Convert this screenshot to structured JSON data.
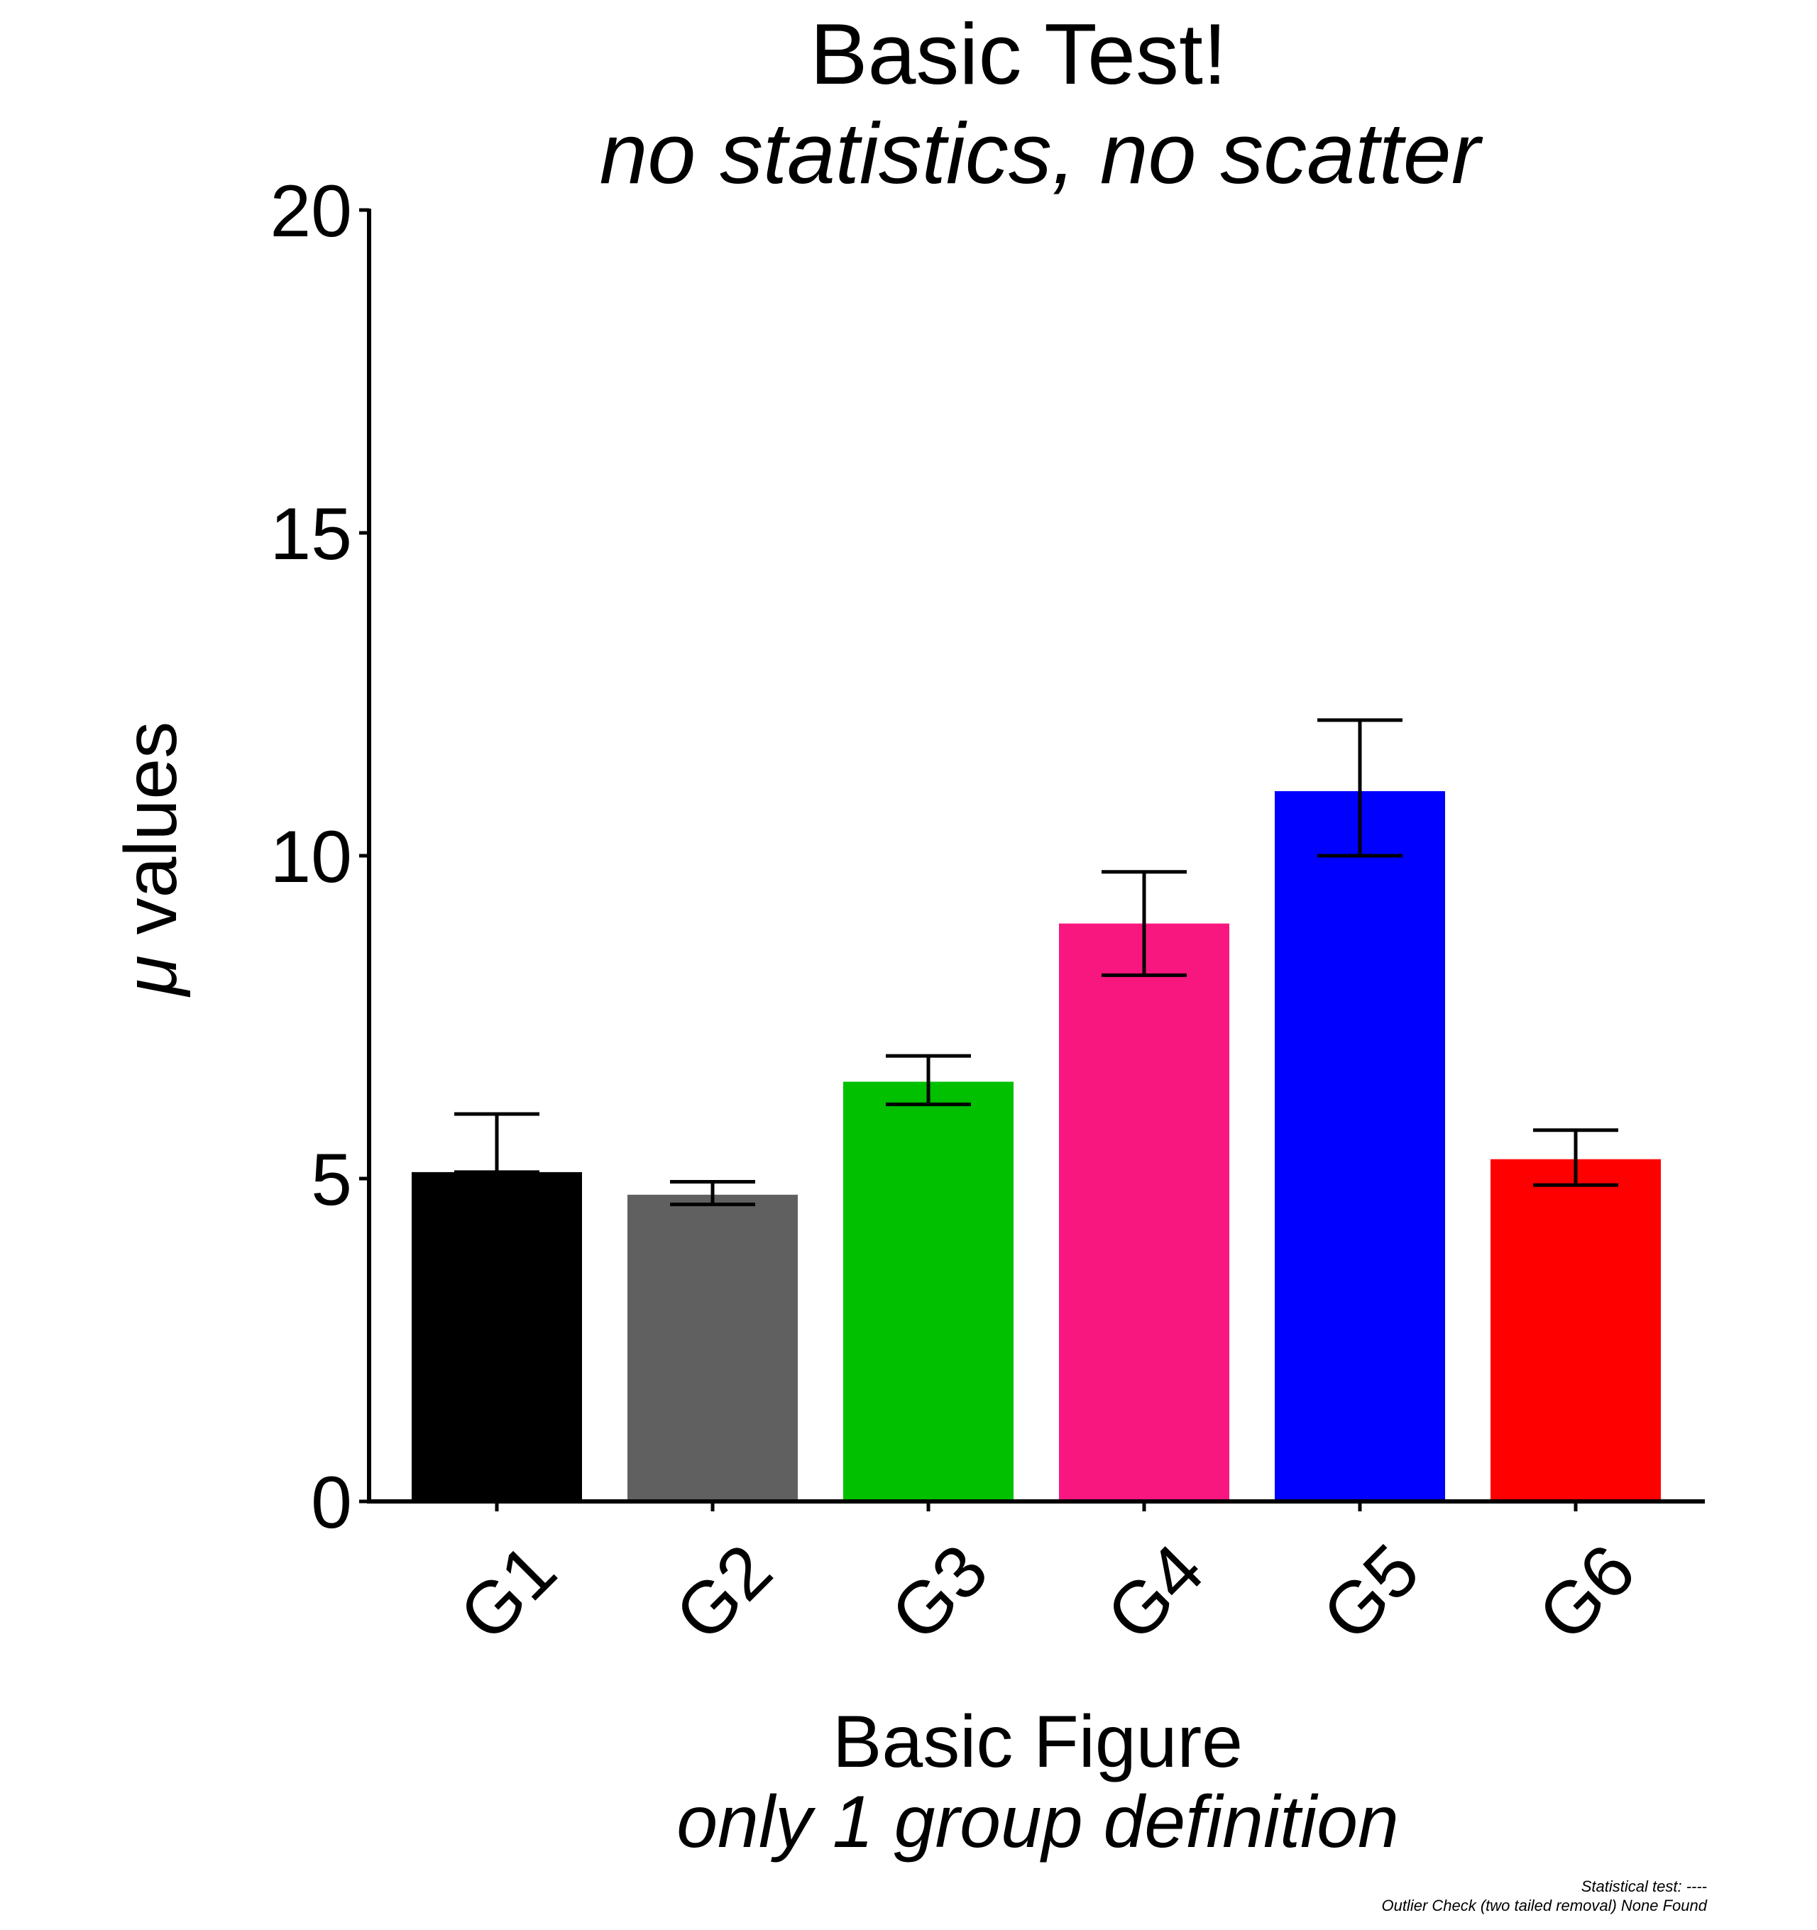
{
  "chart_data": {
    "type": "bar",
    "title": "Basic Test!",
    "subtitle": "no statistics, no scatter",
    "xlabel": "Basic Figure",
    "xlabel_sub": "only 1 group definition",
    "ylabel_symbol": "μ",
    "ylabel_text": " values",
    "ylim": [
      0,
      20
    ],
    "yticks": [
      0,
      5,
      10,
      15,
      20
    ],
    "categories": [
      "G1",
      "G2",
      "G3",
      "G4",
      "G5",
      "G6"
    ],
    "values": [
      5.1,
      4.75,
      6.5,
      8.95,
      11.0,
      5.3
    ],
    "error_low": [
      5.1,
      4.6,
      6.15,
      8.15,
      10.0,
      4.9
    ],
    "error_high": [
      6.0,
      4.95,
      6.9,
      9.75,
      12.1,
      5.75
    ],
    "colors": [
      "#000000",
      "#606060",
      "#00C000",
      "#F8177F",
      "#0000FF",
      "#FF0000"
    ],
    "grid": false,
    "footnote_lines": [
      "Statistical test:  ----",
      "Outlier Check (two tailed removal) None Found"
    ]
  }
}
